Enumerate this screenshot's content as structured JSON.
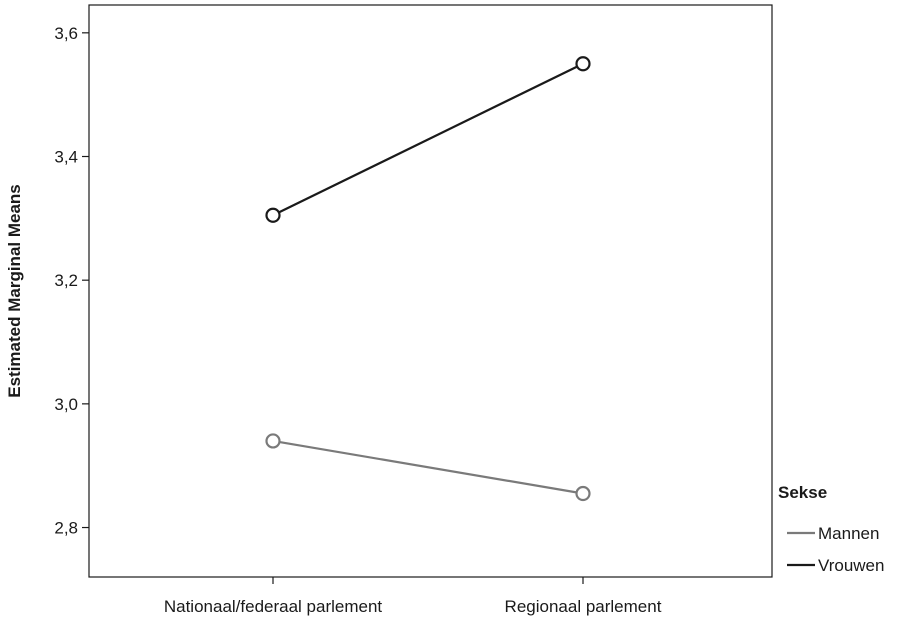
{
  "chart_data": {
    "type": "line",
    "title": "",
    "xlabel": "",
    "ylabel": "Estimated Marginal Means",
    "categories": [
      "Nationaal/federaal parlement",
      "Regionaal parlement"
    ],
    "ylim": [
      2.72,
      3.645
    ],
    "yticks": [
      2.8,
      3.0,
      3.2,
      3.4,
      3.6
    ],
    "ytick_labels": [
      "2,8",
      "3,0",
      "3,2",
      "3,4",
      "3,6"
    ],
    "grid": false,
    "legend": {
      "title": "Sekse",
      "placement": "right"
    },
    "series": [
      {
        "name": "Mannen",
        "color": "#7a7a7a",
        "values": [
          2.94,
          2.855
        ]
      },
      {
        "name": "Vrouwen",
        "color": "#1a1a1a",
        "values": [
          3.305,
          3.55
        ]
      }
    ]
  }
}
